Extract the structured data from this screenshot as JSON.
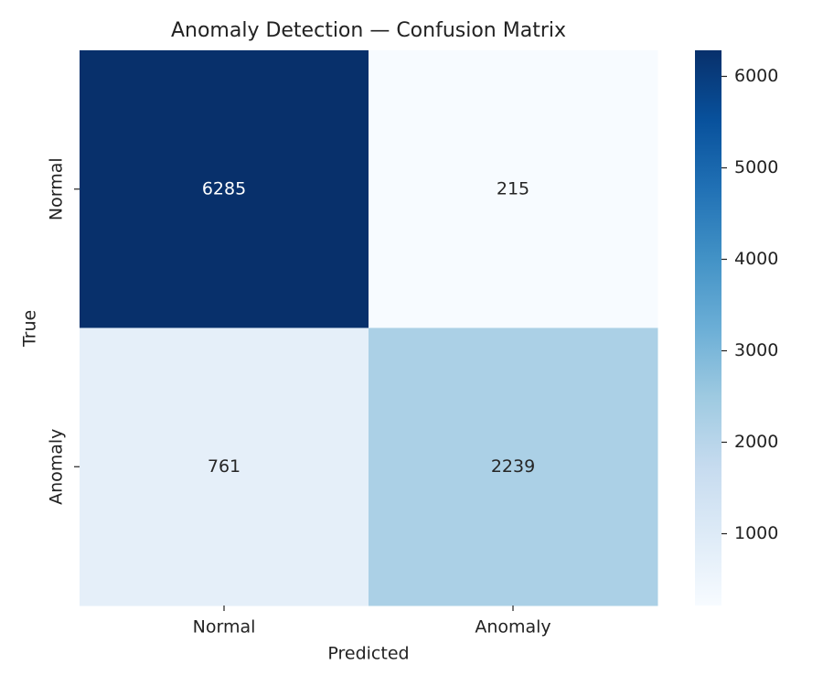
{
  "chart_data": {
    "type": "heatmap",
    "title": "Anomaly Detection — Confusion Matrix",
    "x_label": "Predicted",
    "y_label": "True",
    "x_categories": [
      "Normal",
      "Anomaly"
    ],
    "y_categories": [
      "Normal",
      "Anomaly"
    ],
    "values": [
      [
        6285,
        215
      ],
      [
        761,
        2239
      ]
    ],
    "colormap": "Blues",
    "clim": [
      215,
      6285
    ],
    "colorbar_ticks": [
      1000,
      2000,
      3000,
      4000,
      5000,
      6000
    ]
  }
}
